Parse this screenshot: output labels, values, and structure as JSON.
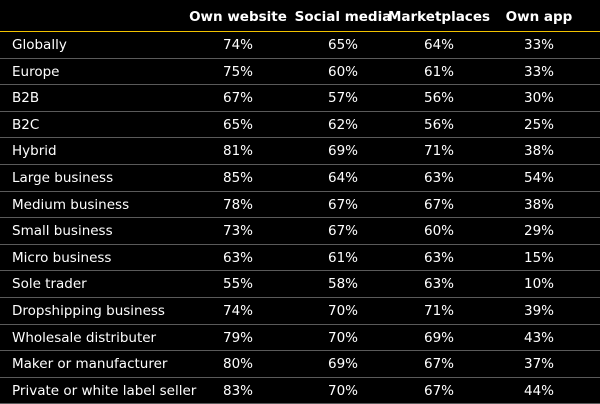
{
  "chart_data": {
    "type": "table",
    "columns": [
      "Own website",
      "Social media",
      "Marketplaces",
      "Own app"
    ],
    "rows": [
      {
        "label": "Globally",
        "values": [
          "74%",
          "65%",
          "64%",
          "33%"
        ]
      },
      {
        "label": "Europe",
        "values": [
          "75%",
          "60%",
          "61%",
          "33%"
        ]
      },
      {
        "label": "B2B",
        "values": [
          "67%",
          "57%",
          "56%",
          "30%"
        ]
      },
      {
        "label": "B2C",
        "values": [
          "65%",
          "62%",
          "56%",
          "25%"
        ]
      },
      {
        "label": "Hybrid",
        "values": [
          "81%",
          "69%",
          "71%",
          "38%"
        ]
      },
      {
        "label": "Large business",
        "values": [
          "85%",
          "64%",
          "63%",
          "54%"
        ]
      },
      {
        "label": "Medium business",
        "values": [
          "78%",
          "67%",
          "67%",
          "38%"
        ]
      },
      {
        "label": "Small business",
        "values": [
          "73%",
          "67%",
          "60%",
          "29%"
        ]
      },
      {
        "label": "Micro business",
        "values": [
          "63%",
          "61%",
          "63%",
          "15%"
        ]
      },
      {
        "label": "Sole trader",
        "values": [
          "55%",
          "58%",
          "63%",
          "10%"
        ]
      },
      {
        "label": "Dropshipping business",
        "values": [
          "74%",
          "70%",
          "71%",
          "39%"
        ]
      },
      {
        "label": "Wholesale distributer",
        "values": [
          "79%",
          "70%",
          "69%",
          "43%"
        ]
      },
      {
        "label": "Maker or manufacturer",
        "values": [
          "80%",
          "69%",
          "67%",
          "37%"
        ]
      },
      {
        "label": "Private or white label seller",
        "values": [
          "83%",
          "70%",
          "67%",
          "44%"
        ]
      }
    ]
  },
  "colors": {
    "background": "#000000",
    "text": "#ffffff",
    "header_rule": "#f2c200",
    "row_rule": "#5a5a5a"
  }
}
